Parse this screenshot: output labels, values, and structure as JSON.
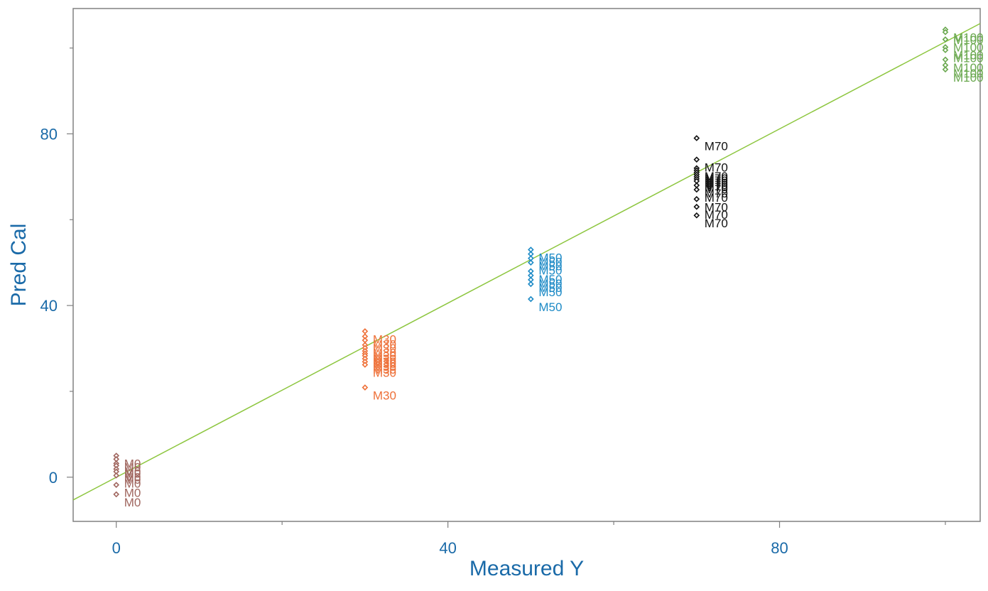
{
  "chart_data": {
    "type": "scatter",
    "title": "",
    "xlabel": "Measured Y",
    "ylabel": "Pred Cal",
    "xlim": [
      -5.2,
      104.2
    ],
    "ylim": [
      -10.3,
      109.2
    ],
    "x_ticks": [
      0,
      40,
      80
    ],
    "x_minor_ticks": [
      20,
      60,
      100
    ],
    "y_ticks": [
      0,
      40,
      80
    ],
    "y_minor_ticks": [
      20,
      60,
      100
    ],
    "grid": false,
    "legend": "none",
    "fit_line": {
      "color": "#8dc63f",
      "points": [
        [
          -5.2,
          -5.3
        ],
        [
          104.2,
          105.7
        ]
      ]
    },
    "series": [
      {
        "label": "M0",
        "color": "#a0665f",
        "x": 0,
        "y": [
          5.0,
          4.2,
          3.2,
          2.7,
          1.9,
          1.3,
          0.4,
          -1.8,
          -4.0
        ]
      },
      {
        "label": "M30",
        "color": "#ee7038",
        "x": 30,
        "y": [
          34.0,
          32.8,
          31.9,
          30.8,
          30.1,
          29.4,
          28.8,
          28.3,
          27.6,
          26.9,
          26.2,
          20.9
        ]
      },
      {
        "label": "M50",
        "color": "#1d8ac6",
        "x": 50,
        "y": [
          53.0,
          52.0,
          51.0,
          50.0,
          48.0,
          47.0,
          46.0,
          45.0,
          41.5
        ]
      },
      {
        "label": "M70",
        "color": "#111111",
        "x": 70,
        "y": [
          79.0,
          74.0,
          72.0,
          71.5,
          71.0,
          70.5,
          70.0,
          69.5,
          69.0,
          68.0,
          67.0,
          64.8,
          63.0,
          61.0
        ]
      },
      {
        "label": "M100",
        "color": "#6aa84f",
        "x": 100,
        "y": [
          104.3,
          103.7,
          102.0,
          100.2,
          99.5,
          97.3,
          96.0,
          95.0
        ]
      }
    ]
  }
}
